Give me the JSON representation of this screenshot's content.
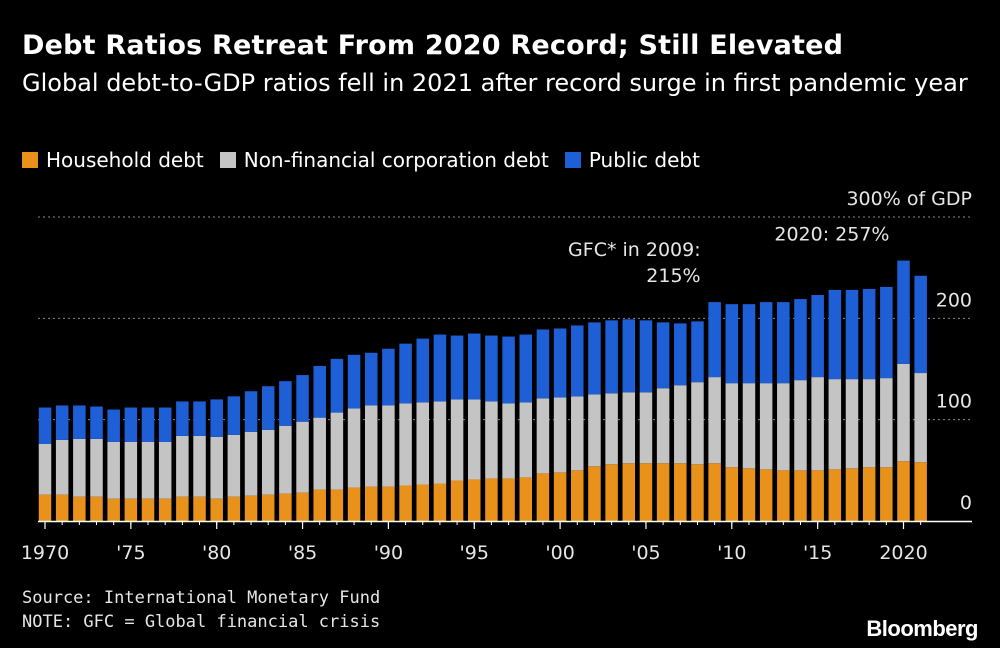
{
  "header": {
    "title": "Debt Ratios Retreat From 2020 Record; Still Elevated",
    "subtitle": "Global debt-to-GDP ratios fell in 2021 after record surge in first pandemic year"
  },
  "footer": {
    "source": "Source: International Monetary Fund",
    "note": "NOTE: GFC = Global financial crisis",
    "brand": "Bloomberg"
  },
  "chart_data": {
    "type": "bar",
    "stacked": true,
    "x": [
      1970,
      1971,
      1972,
      1973,
      1974,
      1975,
      1976,
      1977,
      1978,
      1979,
      1980,
      1981,
      1982,
      1983,
      1984,
      1985,
      1986,
      1987,
      1988,
      1989,
      1990,
      1991,
      1992,
      1993,
      1994,
      1995,
      1996,
      1997,
      1998,
      1999,
      2000,
      2001,
      2002,
      2003,
      2004,
      2005,
      2006,
      2007,
      2008,
      2009,
      2010,
      2011,
      2012,
      2013,
      2014,
      2015,
      2016,
      2017,
      2018,
      2019,
      2020,
      2021
    ],
    "series": [
      {
        "name": "Household debt",
        "color": "#e8921b",
        "values": [
          26,
          26,
          24,
          24,
          22,
          22,
          22,
          22,
          24,
          24,
          22,
          24,
          25,
          26,
          27,
          28,
          31,
          31,
          33,
          34,
          34,
          35,
          36,
          37,
          40,
          41,
          42,
          42,
          43,
          47,
          48,
          50,
          54,
          56,
          57,
          57,
          57,
          57,
          56,
          57,
          53,
          52,
          51,
          50,
          50,
          50,
          51,
          52,
          53,
          53,
          59,
          58
        ]
      },
      {
        "name": "Non-financial corporation debt",
        "color": "#c4c4c4",
        "values": [
          50,
          54,
          57,
          57,
          56,
          56,
          56,
          56,
          60,
          60,
          61,
          61,
          63,
          64,
          67,
          70,
          71,
          76,
          78,
          80,
          80,
          81,
          81,
          81,
          80,
          79,
          76,
          74,
          74,
          74,
          74,
          73,
          71,
          70,
          70,
          70,
          74,
          77,
          81,
          85,
          83,
          84,
          85,
          86,
          89,
          92,
          89,
          88,
          87,
          88,
          96,
          88
        ]
      },
      {
        "name": "Public debt",
        "color": "#1e5fd6",
        "values": [
          36,
          34,
          33,
          32,
          32,
          34,
          34,
          34,
          34,
          34,
          37,
          38,
          40,
          43,
          44,
          46,
          51,
          53,
          53,
          52,
          56,
          59,
          63,
          66,
          63,
          65,
          65,
          66,
          67,
          68,
          68,
          70,
          71,
          72,
          72,
          71,
          65,
          61,
          60,
          74,
          78,
          78,
          80,
          80,
          80,
          81,
          88,
          88,
          89,
          90,
          102,
          96
        ]
      }
    ],
    "yticks": [
      0,
      100,
      200,
      300
    ],
    "ytick_labels": [
      "0",
      "100",
      "200",
      "300% of GDP"
    ],
    "ylim": [
      0,
      300
    ],
    "xtick_labels": [
      {
        "year": 1970,
        "label": "1970"
      },
      {
        "year": 1975,
        "label": "'75"
      },
      {
        "year": 1980,
        "label": "'80"
      },
      {
        "year": 1985,
        "label": "'85"
      },
      {
        "year": 1990,
        "label": "'90"
      },
      {
        "year": 1995,
        "label": "'95"
      },
      {
        "year": 2000,
        "label": "'00"
      },
      {
        "year": 2005,
        "label": "'05"
      },
      {
        "year": 2010,
        "label": "'10"
      },
      {
        "year": 2015,
        "label": "'15"
      },
      {
        "year": 2020,
        "label": "2020"
      }
    ],
    "annotations": [
      {
        "year": 2009,
        "lines": [
          "GFC* in 2009:",
          "215%"
        ]
      },
      {
        "year": 2020,
        "lines": [
          "2020: 257%"
        ]
      }
    ],
    "grid": true,
    "legend_position": "top-left"
  }
}
